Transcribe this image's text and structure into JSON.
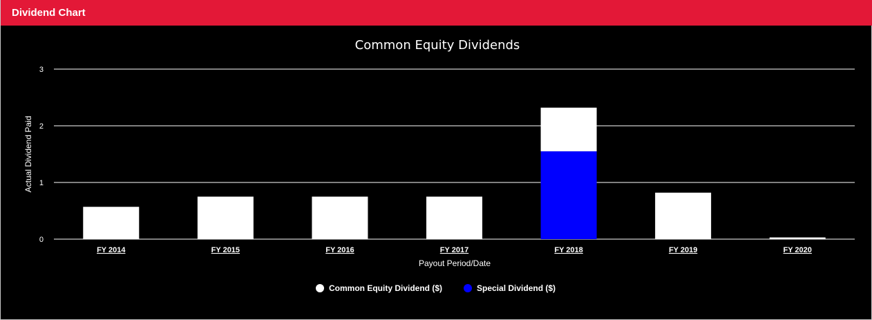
{
  "panel": {
    "title": "Dividend Chart"
  },
  "colors": {
    "header": "#e31837",
    "common": "#ffffff",
    "special": "#0000ff",
    "grid": "#ffffff"
  },
  "chart_data": {
    "type": "bar",
    "stacked": true,
    "title": "Common Equity Dividends",
    "xlabel": "Payout Period/Date",
    "ylabel": "Actual Dividend Paid",
    "ylim": [
      0,
      3
    ],
    "yticks": [
      "0",
      "1",
      "2",
      "3"
    ],
    "grid": true,
    "legend_position": "bottom-center",
    "categories": [
      "FY 2014",
      "FY 2015",
      "FY 2016",
      "FY 2017",
      "FY 2018",
      "FY 2019",
      "FY 2020"
    ],
    "series": [
      {
        "name": "Common Equity Dividend ($)",
        "color": "#ffffff",
        "values": [
          0.57,
          0.75,
          0.75,
          0.75,
          0.77,
          0.82,
          0.03
        ]
      },
      {
        "name": "Special Dividend ($)",
        "color": "#0000ff",
        "values": [
          0,
          0,
          0,
          0,
          1.55,
          0,
          0
        ]
      }
    ]
  }
}
